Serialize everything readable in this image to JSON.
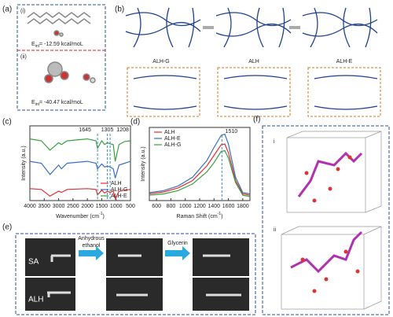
{
  "panels": {
    "a": {
      "label": "(a)",
      "sub1": "(i)",
      "energy1": [
        "E",
        "int",
        "= -12.59 kcal/moL"
      ],
      "sub2": "(ii)",
      "energy2": [
        "E",
        "int",
        "= -40.47 kcal/moL"
      ]
    },
    "b": {
      "label": "(b)",
      "states": [
        "ALH-G",
        "ALH",
        "ALH-E"
      ]
    },
    "c": {
      "label": "(c)"
    },
    "d": {
      "label": "(d)"
    },
    "e": {
      "label": "(e)",
      "samples": [
        "SA",
        "ALH"
      ],
      "step1": [
        "Anhydrous",
        "ethanol"
      ],
      "step2": "Glycerin"
    },
    "f": {
      "label": "(f)",
      "sub1": "i",
      "sub2": "ii"
    }
  },
  "chart_data": [
    {
      "type": "line",
      "ylabel": "Intensity (a.u.)",
      "xlabel": [
        "Wavenumber (cm",
        "-1",
        ")"
      ],
      "xlim": [
        4000,
        500
      ],
      "xticks": [
        4000,
        3500,
        3000,
        2500,
        2000,
        1500,
        1000,
        500
      ],
      "ylim": [
        0,
        2
      ],
      "x": [
        4000,
        3600,
        3300,
        3000,
        2900,
        2700,
        2000,
        1700,
        1645,
        1500,
        1400,
        1305,
        1208,
        1100,
        1030,
        900,
        700,
        500
      ],
      "series": [
        {
          "name": "ALH",
          "color": "#e03030",
          "values": [
            0.32,
            0.3,
            0.12,
            0.25,
            0.22,
            0.3,
            0.32,
            0.3,
            0.15,
            0.28,
            0.2,
            0.25,
            0.22,
            0.25,
            0.05,
            0.25,
            0.28,
            0.3
          ]
        },
        {
          "name": "ALH-G",
          "color": "#3a6fc4",
          "values": [
            1.05,
            1.0,
            0.7,
            0.95,
            0.85,
            1.0,
            1.05,
            1.0,
            0.85,
            0.98,
            0.9,
            0.92,
            0.9,
            0.85,
            0.6,
            0.95,
            1.0,
            1.05
          ]
        },
        {
          "name": "ALH-E",
          "color": "#3aa040",
          "values": [
            1.65,
            1.6,
            1.35,
            1.55,
            1.5,
            1.6,
            1.65,
            1.6,
            1.4,
            1.6,
            1.5,
            1.55,
            1.52,
            1.5,
            1.05,
            1.5,
            1.58,
            1.6
          ]
        }
      ],
      "annotations": [
        {
          "text": "1645",
          "x": 1645
        },
        {
          "text": "1305",
          "x": 1305
        },
        {
          "text": "1208",
          "x": 1208
        }
      ],
      "legend": "lower right"
    },
    {
      "type": "line",
      "ylabel": "Intensity (a.u.)",
      "xlabel": [
        "Raman Shift (cm",
        "-1",
        ")"
      ],
      "xlim": [
        500,
        1900
      ],
      "xticks": [
        600,
        800,
        1000,
        1200,
        1400,
        1600,
        1800
      ],
      "ylim": [
        0,
        1.1
      ],
      "x": [
        500,
        700,
        900,
        1100,
        1300,
        1400,
        1500,
        1550,
        1600,
        1700,
        1800,
        1900
      ],
      "series": [
        {
          "name": "ALH",
          "color": "#e03030",
          "values": [
            0.1,
            0.13,
            0.19,
            0.3,
            0.52,
            0.68,
            0.84,
            0.85,
            0.72,
            0.3,
            0.1,
            0.08
          ]
        },
        {
          "name": "ALH-E",
          "color": "#3a6fc4",
          "values": [
            0.12,
            0.15,
            0.22,
            0.35,
            0.6,
            0.8,
            0.98,
            1.0,
            0.85,
            0.35,
            0.12,
            0.1
          ]
        },
        {
          "name": "ALH-G",
          "color": "#3aa040",
          "values": [
            0.08,
            0.1,
            0.15,
            0.25,
            0.43,
            0.57,
            0.74,
            0.75,
            0.64,
            0.27,
            0.08,
            0.06
          ]
        }
      ],
      "annotations": [
        {
          "text": "1510",
          "x": 1510
        }
      ],
      "legend": "upper left"
    }
  ]
}
